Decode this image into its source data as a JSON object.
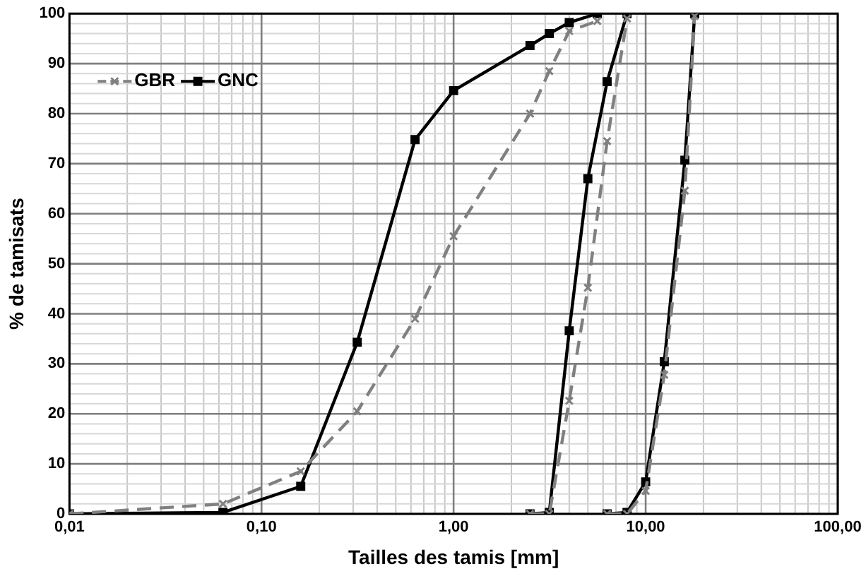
{
  "chart_data": {
    "type": "line",
    "xlabel": "Tailles des tamis [mm]",
    "ylabel": "% de tamisats",
    "log": "x",
    "grid": true,
    "legend": "top left",
    "xlim": [
      0.01,
      100
    ],
    "xticks": [
      {
        "value": 0.01,
        "label": "0,01"
      },
      {
        "value": 0.1,
        "label": "0,10"
      },
      {
        "value": 1,
        "label": "1,00"
      },
      {
        "value": 10,
        "label": "10,00"
      },
      {
        "value": 100,
        "label": "100,00"
      }
    ],
    "ylim": [
      0,
      100
    ],
    "yticks": [
      0,
      10,
      20,
      30,
      40,
      50,
      60,
      70,
      80,
      90,
      100
    ],
    "series": [
      {
        "name": "GBR",
        "color": "#808080",
        "marker": "cross",
        "line_style": "dashed",
        "x": [
          0.01,
          0.063,
          0.16,
          0.315,
          0.63,
          1,
          2.5,
          3.15,
          4,
          5.6
        ],
        "values": [
          0,
          2,
          8.5,
          20.5,
          39,
          55.5,
          80,
          88.5,
          96.5,
          98.5
        ]
      },
      {
        "name": "GNC",
        "color": "#000000",
        "marker": "square",
        "line_style": "solid",
        "x": [
          0.01,
          0.063,
          0.16,
          0.315,
          0.63,
          1,
          2.5,
          3.15,
          4,
          5.6
        ],
        "values": [
          0,
          0.3,
          5.5,
          34.3,
          74.8,
          84.6,
          93.6,
          96,
          98.2,
          100
        ]
      },
      {
        "color": "#808080",
        "marker": "cross",
        "line_style": "dashed",
        "x": [
          2.5,
          3.15,
          4,
          5,
          6.3,
          8
        ],
        "values": [
          0,
          0,
          22.6,
          45.2,
          74.5,
          99
        ]
      },
      {
        "color": "#000000",
        "marker": "square",
        "line_style": "solid",
        "x": [
          2.5,
          3.15,
          4,
          5,
          6.3,
          8
        ],
        "values": [
          0,
          0.3,
          36.6,
          67,
          86.4,
          100
        ]
      },
      {
        "color": "#808080",
        "marker": "cross",
        "line_style": "dashed",
        "x": [
          6.3,
          8,
          10,
          12.5,
          16,
          18
        ],
        "values": [
          0,
          0,
          4.6,
          27.8,
          64.6,
          99.5
        ]
      },
      {
        "color": "#000000",
        "marker": "square",
        "line_style": "solid",
        "x": [
          6.3,
          8,
          10,
          12.5,
          16,
          18
        ],
        "values": [
          0,
          0.3,
          6.4,
          30.4,
          70.7,
          100
        ]
      }
    ]
  }
}
